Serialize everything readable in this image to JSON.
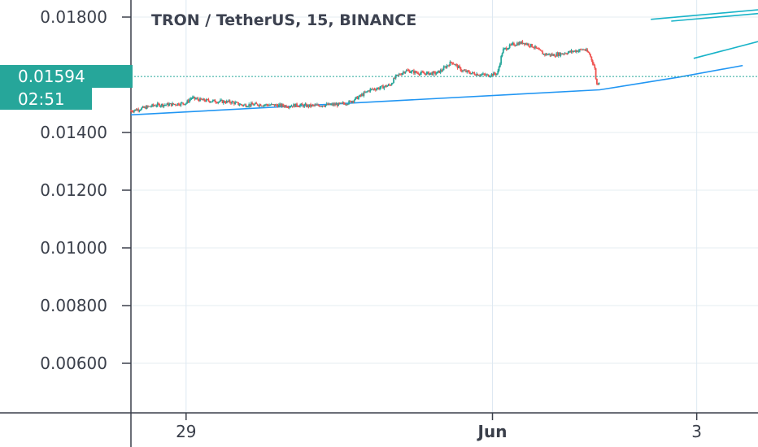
{
  "chart_data": {
    "type": "candlestick",
    "title": "TRON / TetherUS, 15, BINANCE",
    "y_ticks": [
      {
        "value": 0.018,
        "label": "0.01800"
      },
      {
        "value": 0.014,
        "label": "0.01400"
      },
      {
        "value": 0.012,
        "label": "0.01200"
      },
      {
        "value": 0.01,
        "label": "0.01000"
      },
      {
        "value": 0.008,
        "label": "0.00800"
      },
      {
        "value": 0.006,
        "label": "0.00600"
      }
    ],
    "x_ticks": [
      {
        "day": 29,
        "label": "29"
      },
      {
        "day": 32,
        "label": "Jun"
      },
      {
        "day": 34,
        "label": "3"
      }
    ],
    "ylim": [
      0.0045,
      0.0185
    ],
    "xlim": [
      28.46,
      34.6
    ],
    "current_price": {
      "value": 0.01594,
      "label": "0.01594",
      "countdown": "02:51"
    },
    "colors": {
      "up": "#26a69a",
      "down": "#ef5350",
      "trendline": "#2196f3",
      "cyan_line": "#18b3c8",
      "price_label": "#26a69a",
      "grid": "#e6ecf2",
      "axis": "#3a3f4a"
    },
    "price_path": [
      [
        28.46,
        0.01475
      ],
      [
        28.55,
        0.01482
      ],
      [
        28.7,
        0.01495
      ],
      [
        28.85,
        0.01497
      ],
      [
        29.0,
        0.01502
      ],
      [
        29.05,
        0.0152
      ],
      [
        29.15,
        0.01512
      ],
      [
        29.3,
        0.01508
      ],
      [
        29.45,
        0.01505
      ],
      [
        29.55,
        0.01495
      ],
      [
        29.7,
        0.01497
      ],
      [
        29.85,
        0.01495
      ],
      [
        30.0,
        0.01492
      ],
      [
        30.1,
        0.01495
      ],
      [
        30.2,
        0.01492
      ],
      [
        30.35,
        0.01495
      ],
      [
        30.5,
        0.01497
      ],
      [
        30.6,
        0.01505
      ],
      [
        30.7,
        0.01525
      ],
      [
        30.8,
        0.01548
      ],
      [
        30.9,
        0.01555
      ],
      [
        31.0,
        0.01565
      ],
      [
        31.05,
        0.01592
      ],
      [
        31.15,
        0.01615
      ],
      [
        31.3,
        0.01605
      ],
      [
        31.45,
        0.01605
      ],
      [
        31.5,
        0.01615
      ],
      [
        31.6,
        0.01645
      ],
      [
        31.7,
        0.01615
      ],
      [
        31.8,
        0.01605
      ],
      [
        31.95,
        0.01598
      ],
      [
        32.05,
        0.01605
      ],
      [
        32.1,
        0.01685
      ],
      [
        32.2,
        0.01705
      ],
      [
        32.3,
        0.01712
      ],
      [
        32.4,
        0.01698
      ],
      [
        32.5,
        0.01672
      ],
      [
        32.6,
        0.01668
      ],
      [
        32.7,
        0.01675
      ],
      [
        32.8,
        0.01682
      ],
      [
        32.9,
        0.01688
      ],
      [
        32.95,
        0.01672
      ],
      [
        33.0,
        0.01625
      ],
      [
        33.02,
        0.01565
      ],
      [
        33.05,
        0.0158
      ]
    ],
    "trendlines": [
      {
        "name": "blue-support",
        "color": "#2196f3",
        "points": [
          [
            28.46,
            0.01461
          ],
          [
            33.05,
            0.01548
          ],
          [
            33.83,
            0.01592
          ],
          [
            34.45,
            0.01632
          ]
        ]
      },
      {
        "name": "cyan-1",
        "color": "#18b3c8",
        "points": [
          [
            33.55,
            0.01792
          ],
          [
            34.6,
            0.01825
          ]
        ]
      },
      {
        "name": "cyan-2",
        "color": "#18b3c8",
        "points": [
          [
            33.75,
            0.01786
          ],
          [
            34.6,
            0.01812
          ]
        ]
      },
      {
        "name": "cyan-3",
        "color": "#18b3c8",
        "points": [
          [
            33.97,
            0.01657
          ],
          [
            34.6,
            0.01715
          ]
        ]
      }
    ]
  }
}
